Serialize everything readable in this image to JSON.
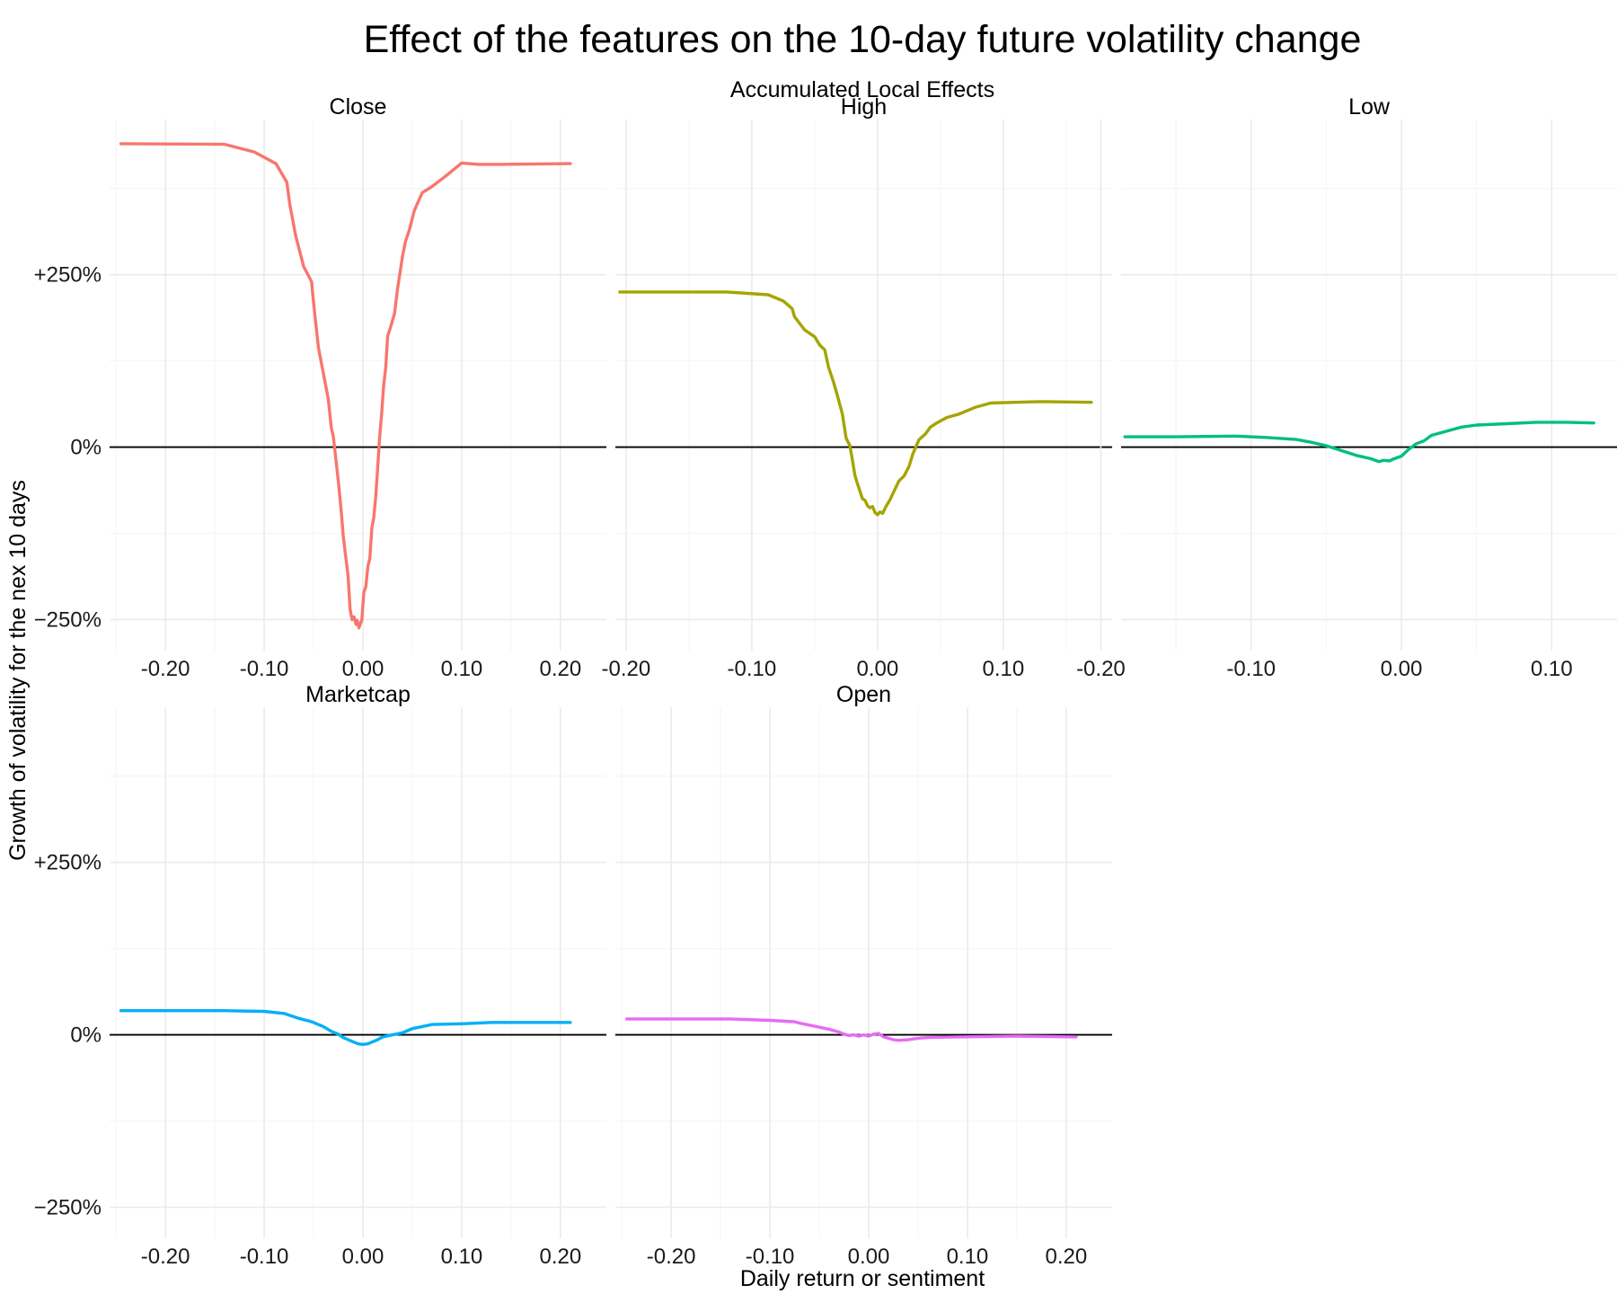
{
  "chart_data": {
    "type": "line",
    "title": "Effect of the features on the 10-day future volatility change",
    "subtitle": "Accumulated Local Effects",
    "xlabel": "Daily return or sentiment",
    "ylabel": "Growth of volatility for the nex 10 days",
    "y_ticks": [
      "+250%",
      "0%",
      "−250%"
    ],
    "y_tick_values": [
      250,
      0,
      -250
    ],
    "ylim": [
      -295,
      475
    ],
    "grid": true,
    "reference_line_y": 0,
    "panels": [
      {
        "name": "Close",
        "color": "#F8766D",
        "xlim": [
          -0.2565,
          0.2465
        ],
        "x_ticks": [
          "-0.20",
          "-0.10",
          "0.00",
          "0.10",
          "0.20"
        ],
        "x_tick_values": [
          -0.2,
          -0.1,
          0.0,
          0.1,
          0.2
        ],
        "x": [
          -0.245,
          -0.14,
          -0.11,
          -0.088,
          -0.077,
          -0.074,
          -0.068,
          -0.06,
          -0.052,
          -0.05,
          -0.045,
          -0.04,
          -0.035,
          -0.032,
          -0.03,
          -0.025,
          -0.022,
          -0.02,
          -0.018,
          -0.015,
          -0.013,
          -0.011,
          -0.009,
          -0.007,
          -0.006,
          -0.004,
          -0.003,
          -0.001,
          0.0,
          0.001,
          0.003,
          0.005,
          0.007,
          0.009,
          0.011,
          0.013,
          0.015,
          0.017,
          0.019,
          0.021,
          0.023,
          0.025,
          0.028,
          0.032,
          0.035,
          0.04,
          0.043,
          0.047,
          0.052,
          0.06,
          0.07,
          0.083,
          0.1,
          0.117,
          0.14,
          0.21
        ],
        "y": [
          440,
          439,
          428,
          411,
          384,
          352,
          306,
          262,
          240,
          210,
          144,
          107,
          69,
          28,
          16,
          -48,
          -92,
          -128,
          -152,
          -187,
          -235,
          -250,
          -246,
          -257,
          -251,
          -262,
          -258,
          -250,
          -228,
          -210,
          -202,
          -173,
          -161,
          -118,
          -102,
          -71,
          -29,
          16,
          49,
          90,
          114,
          161,
          174,
          194,
          229,
          276,
          298,
          315,
          343,
          369,
          378,
          392,
          412,
          410,
          410,
          411
        ]
      },
      {
        "name": "High",
        "color": "#A3A500",
        "xlim": [
          -0.2085,
          0.1865
        ],
        "x_ticks": [
          "-0.20",
          "-0.10",
          "0.00",
          "0.10"
        ],
        "x_tick_values": [
          -0.2,
          -0.1,
          0.0,
          0.1
        ],
        "x": [
          -0.205,
          -0.12,
          -0.087,
          -0.075,
          -0.068,
          -0.066,
          -0.058,
          -0.05,
          -0.046,
          -0.042,
          -0.039,
          -0.035,
          -0.032,
          -0.028,
          -0.025,
          -0.022,
          -0.02,
          -0.018,
          -0.016,
          -0.014,
          -0.012,
          -0.01,
          -0.008,
          -0.006,
          -0.004,
          -0.002,
          0.0,
          0.002,
          0.004,
          0.007,
          0.01,
          0.013,
          0.017,
          0.021,
          0.025,
          0.028,
          0.033,
          0.038,
          0.042,
          0.047,
          0.055,
          0.065,
          0.078,
          0.09,
          0.13,
          0.17
        ],
        "y": [
          225,
          225,
          221,
          212,
          201,
          189,
          170,
          160,
          148,
          141,
          116,
          94,
          75,
          48,
          13,
          2,
          -19,
          -41,
          -53,
          -64,
          -75,
          -77,
          -85,
          -88,
          -86,
          -95,
          -98,
          -94,
          -96,
          -85,
          -76,
          -64,
          -49,
          -42,
          -28,
          -10,
          11,
          19,
          29,
          35,
          43,
          48,
          58,
          64,
          66,
          65
        ]
      },
      {
        "name": "Low",
        "color": "#00BF7D",
        "xlim": [
          -0.1865,
          0.1435
        ],
        "x_ticks": [
          "-0.20",
          "-0.10",
          "0.00",
          "0.10"
        ],
        "x_tick_values": [
          -0.2,
          -0.1,
          0.0,
          0.1
        ],
        "x": [
          -0.184,
          -0.15,
          -0.11,
          -0.09,
          -0.07,
          -0.06,
          -0.05,
          -0.04,
          -0.03,
          -0.02,
          -0.015,
          -0.012,
          -0.008,
          -0.005,
          0.0,
          0.005,
          0.01,
          0.015,
          0.02,
          0.03,
          0.04,
          0.05,
          0.07,
          0.09,
          0.11,
          0.128
        ],
        "y": [
          15,
          15,
          16,
          14,
          11,
          7,
          2,
          -5,
          -12,
          -17,
          -21,
          -19,
          -20,
          -17,
          -13,
          -3,
          5,
          9,
          17,
          23,
          29,
          32,
          34,
          36,
          36,
          35
        ]
      },
      {
        "name": "Marketcap",
        "color": "#00B0F6",
        "xlim": [
          -0.2565,
          0.2465
        ],
        "x_ticks": [
          "-0.20",
          "-0.10",
          "0.00",
          "0.10",
          "0.20"
        ],
        "x_tick_values": [
          -0.2,
          -0.1,
          0.0,
          0.1,
          0.2
        ],
        "x": [
          -0.245,
          -0.14,
          -0.1,
          -0.08,
          -0.065,
          -0.052,
          -0.04,
          -0.032,
          -0.025,
          -0.02,
          -0.015,
          -0.01,
          -0.005,
          0.0,
          0.005,
          0.01,
          0.015,
          0.02,
          0.03,
          0.04,
          0.045,
          0.05,
          0.06,
          0.07,
          0.1,
          0.13,
          0.21
        ],
        "y": [
          35,
          35,
          34,
          31,
          24,
          19,
          12,
          5,
          1,
          -4,
          -7,
          -10,
          -13,
          -14,
          -13,
          -10,
          -7,
          -3,
          0,
          3,
          6,
          9,
          12,
          15,
          16,
          18,
          18
        ]
      },
      {
        "name": "Open",
        "color": "#E76BF3",
        "xlim": [
          -0.2565,
          0.2465
        ],
        "x_ticks": [
          "-0.20",
          "-0.10",
          "0.00",
          "0.10",
          "0.20"
        ],
        "x_tick_values": [
          -0.2,
          -0.1,
          0.0,
          0.1,
          0.2
        ],
        "x": [
          -0.245,
          -0.14,
          -0.1,
          -0.075,
          -0.07,
          -0.06,
          -0.05,
          -0.04,
          -0.03,
          -0.025,
          -0.02,
          -0.015,
          -0.01,
          -0.005,
          0.0,
          0.005,
          0.01,
          0.015,
          0.02,
          0.025,
          0.03,
          0.04,
          0.05,
          0.06,
          0.09,
          0.15,
          0.21
        ],
        "y": [
          23,
          23,
          21,
          19,
          17,
          14,
          11,
          8,
          4,
          1,
          -1,
          0,
          -2,
          0,
          -2,
          1,
          2,
          -3,
          -5,
          -7,
          -8,
          -7,
          -5,
          -4,
          -3,
          -2,
          -3
        ]
      }
    ]
  }
}
